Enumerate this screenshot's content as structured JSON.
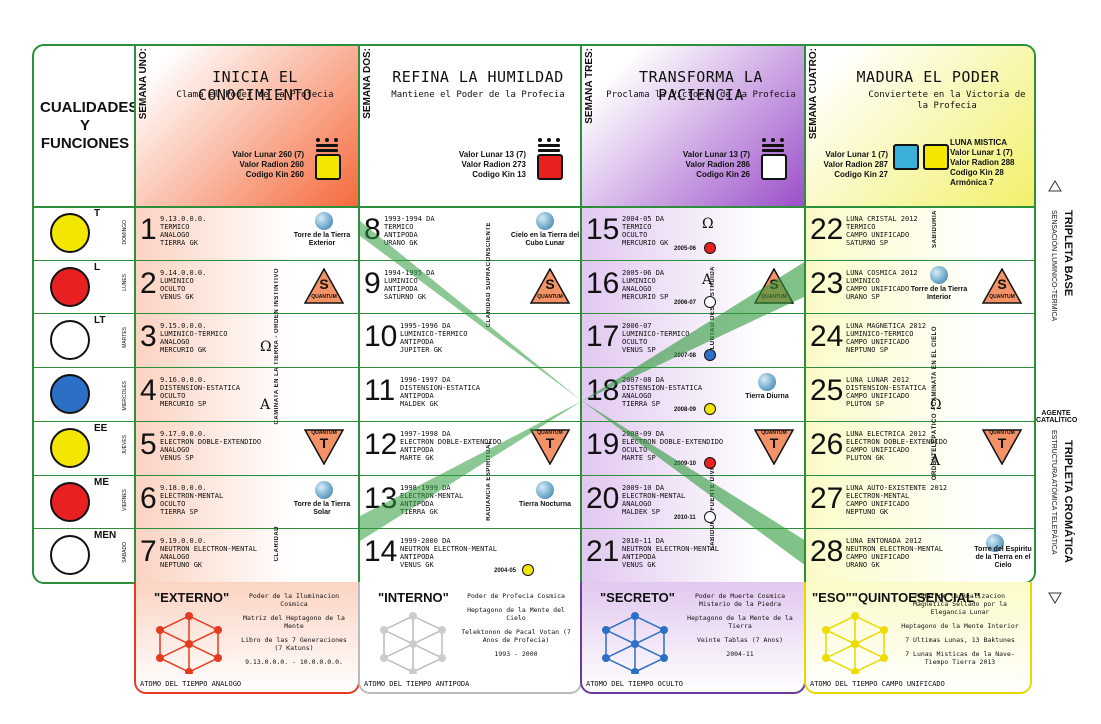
{
  "title": "CUALIDADES Y FUNCIONES",
  "weeks": [
    {
      "label": "SEMANA UNO:",
      "title": "INICIA EL CONOCIMIENTO",
      "subtitle": "Clama el Poder de la Profecia",
      "values": [
        "Valor Lunar 260 (7)",
        "Valor Radion 260",
        "Codigo Kin 260"
      ],
      "color": "#f0643a"
    },
    {
      "label": "SEMANA DOS:",
      "title": "REFINA LA HUMILDAD",
      "subtitle": "Mantiene el Poder de la Profecia",
      "values": [
        "Valor Lunar 13 (7)",
        "Valor Radion 273",
        "Codigo Kin 13"
      ],
      "color": "#ffffff"
    },
    {
      "label": "SEMANA TRES:",
      "title": "TRANSFORMA LA PACIENCIA",
      "subtitle": "Proclama la Victoria de la Profecia",
      "values": [
        "Valor Lunar 13 (7)",
        "Valor Radion 286",
        "Codigo Kin 26"
      ],
      "color": "#9b59c6"
    },
    {
      "label": "SEMANA CUATRO:",
      "title": "MADURA EL PODER",
      "subtitle": "Conviertete en la Victoria de la Profecia",
      "values": [
        "Valor Lunar 1 (7)",
        "Valor Radion 287",
        "Codigo Kin 27"
      ],
      "values2": [
        "LUNA MISTICA",
        "Valor Lunar 1 (7)",
        "Valor Radion 288",
        "Codigo Kin 28",
        "Armónica 7"
      ],
      "color": "#f4f36a"
    }
  ],
  "plasmas": [
    {
      "tone": "T",
      "day": "DOMINGO"
    },
    {
      "tone": "L",
      "day": "LUNES"
    },
    {
      "tone": "LT",
      "day": "MARTES"
    },
    {
      "tone": "",
      "day": "MIERCOLES"
    },
    {
      "tone": "EE",
      "day": "JUEVES"
    },
    {
      "tone": "ME",
      "day": "VIERNES"
    },
    {
      "tone": "MEN",
      "day": "SABADO"
    }
  ],
  "col1": [
    {
      "n": "1",
      "t": "9.13.0.0.0.\nTERMICO\nANALOGO\nTIERRA GK"
    },
    {
      "n": "2",
      "t": "9.14.0.0.0.\nLUMINICO\nOCULTO\nVENUS GK"
    },
    {
      "n": "3",
      "t": "9.15.0.0.0.\nLUMINICO-TERMICO\nANALOGO\nMERCURIO GK"
    },
    {
      "n": "4",
      "t": "9.16.0.0.0.\nDISTENSION-ESTATICA\nOCULTO\nMERCURIO SP"
    },
    {
      "n": "5",
      "t": "9.17.0.0.0.\nELECTRON DOBLE-EXTENDIDO\nANALOGO\nVENUS SP"
    },
    {
      "n": "6",
      "t": "9.18.0.0.0.\nELECTRON-MENTAL\nOCULTO\nTIERRA SP"
    },
    {
      "n": "7",
      "t": "9.19.0.0.0.\nNEUTRON ELECTRON-MENTAL\nANALOGO\nNEPTUNO GK"
    }
  ],
  "col2": [
    {
      "n": "8",
      "t": "1993-1994 DA\nTERMICO\nANTIPODA\nURANO GK"
    },
    {
      "n": "9",
      "t": "1994-1995 DA\nLUMINICO\nANTIPODA\nSATURNO GK"
    },
    {
      "n": "10",
      "t": "1995-1996 DA\nLUMINICO-TERMICO\nANTIPODA\nJUPITER GK"
    },
    {
      "n": "11",
      "t": "1996-1997 DA\nDISTENSION-ESTATICA\nANTIPODA\nMALDEK GK"
    },
    {
      "n": "12",
      "t": "1997-1998 DA\nELECTRON DOBLE-EXTENDIDO\nANTIPODA\nMARTE GK"
    },
    {
      "n": "13",
      "t": "1998-1999 DA\nELECTRON-MENTAL\nANTIPODA\nTIERRA GK"
    },
    {
      "n": "14",
      "t": "1999-2000 DA\nNEUTRON ELECTRON-MENTAL\nANTIPODA\nVENUS GK"
    }
  ],
  "col3": [
    {
      "n": "15",
      "t": "2004-05 DA\nTERMICO\nOCULTO\nMERCURIO GK"
    },
    {
      "n": "16",
      "t": "2005-06 DA\nLUMINICO\nANALOGO\nMERCURIO SP"
    },
    {
      "n": "17",
      "t": "2006-07\nLUMINICO-TERMICO\nOCULTO\nVENUS SP"
    },
    {
      "n": "18",
      "t": "2007-08 DA\nDISTENSION-ESTATICA\nANALOGO\nTIERRA SP"
    },
    {
      "n": "19",
      "t": "2008-09 DA\nELECTRON DOBLE-EXTENDIDO\nOCULTO\nMARTE SP"
    },
    {
      "n": "20",
      "t": "2009-10 DA\nELECTRON-MENTAL\nANALOGO\nMALDEK SP"
    },
    {
      "n": "21",
      "t": "2010-11 DA\nNEUTRON ELECTRON-MENTAL\nANTIPODA\nVENUS GK"
    }
  ],
  "col3_years": [
    "2005-06",
    "2006-07",
    "2007-08",
    "2008-09",
    "2009-10",
    "2010-11"
  ],
  "col4": [
    {
      "n": "22",
      "t": "LUNA CRISTAL 2012\nTERMICO\nCAMPO UNIFICADO\nSATURNO SP"
    },
    {
      "n": "23",
      "t": "LUNA COSMICA 2012\nLUMINICO\nCAMPO UNIFICADO\nURANO SP"
    },
    {
      "n": "24",
      "t": "LUNA MAGNETICA 2012\nLUMINICO-TERMICO\nCAMPO UNIFICADO\nNEPTUNO SP"
    },
    {
      "n": "25",
      "t": "LUNA LUNAR 2012\nDISTENSION-ESTATICA\nCAMPO UNIFICADO\nPLUTON SP"
    },
    {
      "n": "26",
      "t": "LUNA ELECTRICA 2012\nELECTRON DOBLE-EXTENDIDO\nCAMPO UNIFICADO\nPLUTON GK"
    },
    {
      "n": "27",
      "t": "LUNA AUTO-EXISTENTE 2012\nELECTRON-MENTAL\nCAMPO UNIFICADO\nNEPTUNO GK"
    },
    {
      "n": "28",
      "t": "LUNA ENTONADA 2012\nNEUTRON ELECTRON-MENTAL\nCAMPO UNIFICADO\nURANO GK"
    }
  ],
  "labels": {
    "torre_exterior": "Torre de la Tierra Exterior",
    "cielo_cubo": "Cielo en la Tierra del Cubo Lunar",
    "torre_solar": "Torre de la Tierra Solar",
    "tierra_nocturna": "Tierra Nocturna",
    "tierra_diurna": "Tierra Diurna",
    "torre_interior": "Torre de la Tierra Interior",
    "torre_espiritu": "Torre del Espiritu de la Tierra en el Cielo",
    "quantum": "QUANTUM",
    "s": "S",
    "t": "T",
    "year_14": "2004-05",
    "omega": "Ω",
    "alpha": "A"
  },
  "vlabels": {
    "caminata": "CAMINATA EN LA TIERRA - ORDEN INSTINTIVO",
    "claridad": "CLARIDAD",
    "claridad_supra": "CLARIDAD SUPRACONSCIENTE",
    "radiancia": "RADIANCIA ESPIRITUAL",
    "voluntad": "VOLUNTAD DESOBSTRUIDA",
    "sabiduria": "SABIDURIA FUENTE DIVINA",
    "sabiduria2": "SABIDURIA",
    "orden": "ORDENTELEPÁTICO - CAMINATA EN EL CIELO"
  },
  "side": {
    "tripleta_base": "TRIPLETA BASE",
    "sensacion": "SENSACIÓN LUMINICO-TERMICA",
    "agente": "AGENTE CATALÍTICO",
    "tripleta_crom": "TRIPLETA CROMÁTICA",
    "estructura": "ESTRUCTURA ATÓMICA TELEPÁTICA"
  },
  "bottoms": [
    {
      "title": "\"EXTERNO\"",
      "foot": "ATOMO DEL TIEMPO ANALOGO",
      "lines": [
        "Poder de la Iluminacion Cosmica",
        "Matriz del Heptagono de la Mente",
        "Libro de las 7 Generaciones (7 Katuns)",
        "9.13.0.0.0. - 10.0.0.0.0."
      ],
      "color": "#e63b1f"
    },
    {
      "title": "\"INTERNO\"",
      "foot": "ATOMO DEL TIEMPO ANTIPODA",
      "lines": [
        "Poder de Profecia Cosmica",
        "Heptagono de la Mente del Cielo",
        "Telektonon de Pacal Votan (7 Anos de Profecia)",
        "1993 - 2000"
      ],
      "color": "#bbbbbb"
    },
    {
      "title": "\"SECRETO\"",
      "foot": "ATOMO DEL TIEMPO OCULTO",
      "lines": [
        "Poder de Muerte Cosmica Misterio de la Piedra",
        "Heptagono de la Mente de la Tierra",
        "Veinte Tablas (7 Anos)",
        "2004-11"
      ],
      "color": "#6a3a9e"
    },
    {
      "title": "\"ESO\"\"QUINTOESENCIAL\"",
      "foot": "ATOMO DEL TIEMPO CAMPO UNIFICADO",
      "lines": [
        "Poder de la Realizacion Magnetica Sellado por la Elegancia Lunar",
        "Heptagono de la Mente Interior",
        "7 Ultimas Lunas, 13 Baktunes",
        "7 Lunas Misticas de la Nave-Tiempo Tierra 2013"
      ],
      "color": "#e8d800"
    }
  ]
}
